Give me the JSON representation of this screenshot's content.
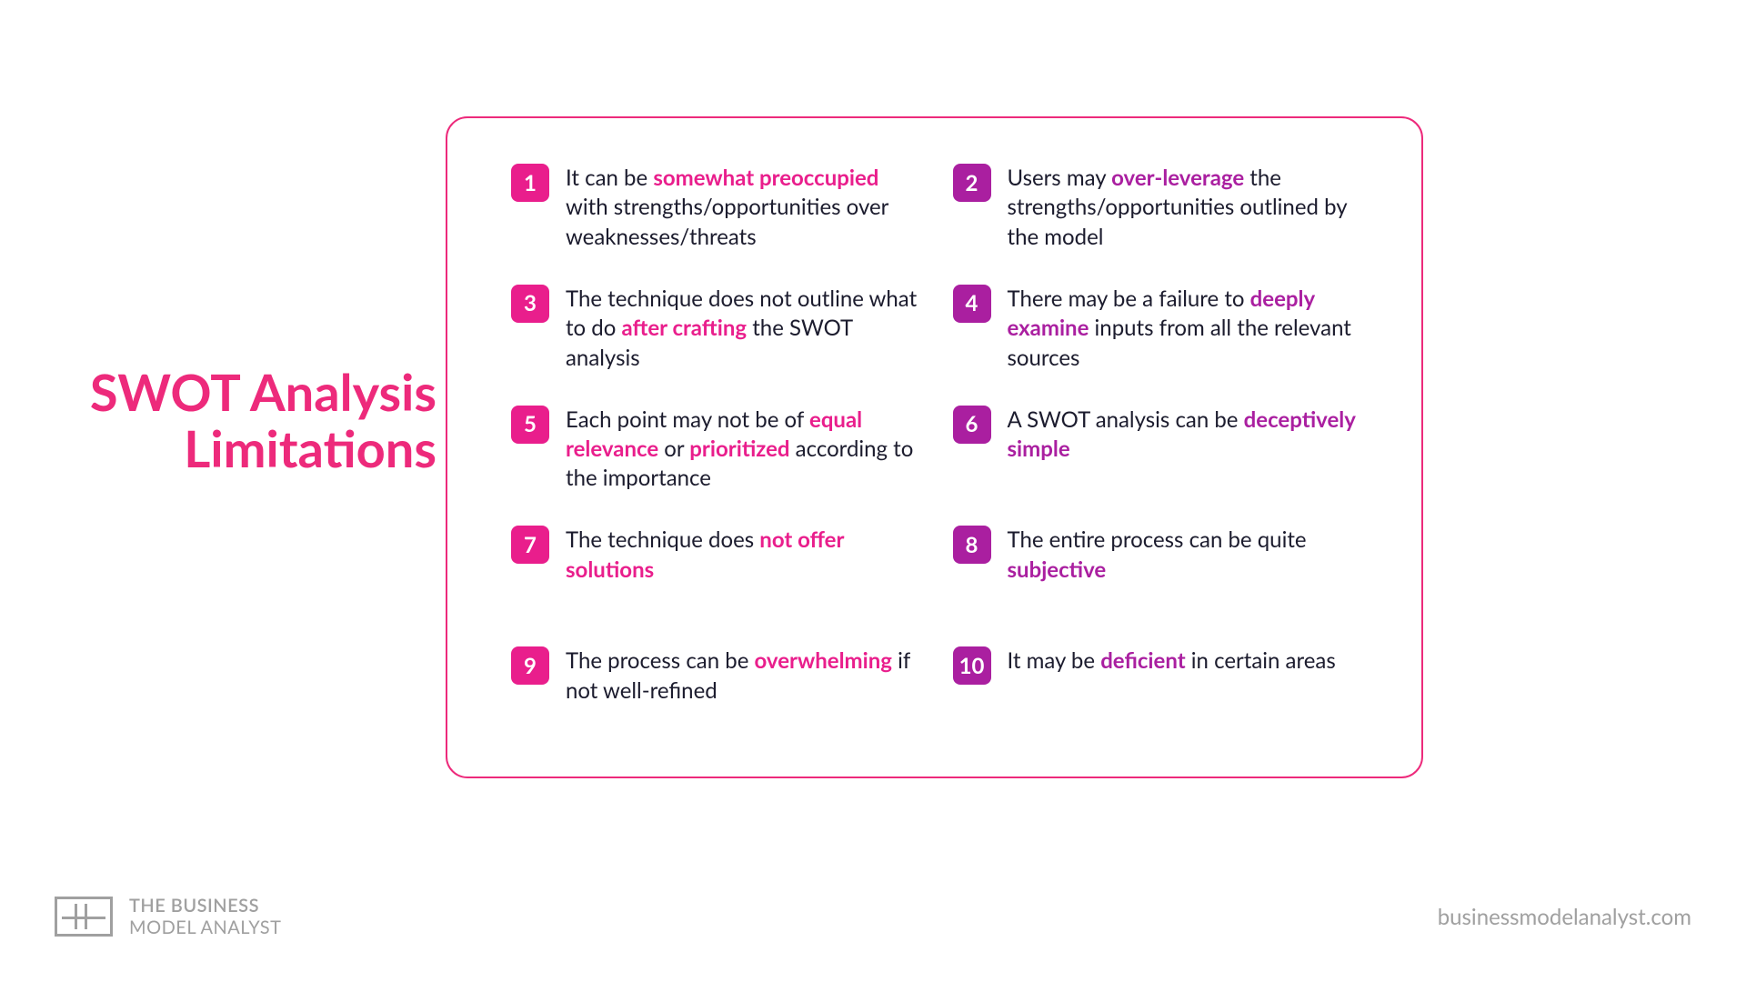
{
  "colors": {
    "title": "#ed2a7b",
    "panel_border": "#ed2a7b",
    "body_text": "#1c1c2e",
    "footer": "#a0a0a0"
  },
  "title_line1": "SWOT Analysis",
  "title_line2": "Limitations",
  "items": [
    {
      "num": "1",
      "box_color": "#e91e8c",
      "hl_color": "#e91e8c",
      "parts": [
        {
          "t": "It can be "
        },
        {
          "t": "somewhat preoccupied",
          "hl": true
        },
        {
          "t": " with strengths/opportunities over weaknesses/threats"
        }
      ]
    },
    {
      "num": "2",
      "box_color": "#aa1fa0",
      "hl_color": "#aa1fa0",
      "parts": [
        {
          "t": "Users may "
        },
        {
          "t": "over-leverage",
          "hl": true
        },
        {
          "t": " the strengths/opportunities outlined by the model"
        }
      ]
    },
    {
      "num": "3",
      "box_color": "#e91e8c",
      "hl_color": "#e91e8c",
      "parts": [
        {
          "t": "The technique does not outline what to do "
        },
        {
          "t": "after crafting",
          "hl": true
        },
        {
          "t": " the SWOT analysis"
        }
      ]
    },
    {
      "num": "4",
      "box_color": "#aa1fa0",
      "hl_color": "#aa1fa0",
      "parts": [
        {
          "t": "There may be a failure to "
        },
        {
          "t": "deeply examine",
          "hl": true
        },
        {
          "t": " inputs from all the relevant sources"
        }
      ]
    },
    {
      "num": "5",
      "box_color": "#e91e8c",
      "hl_color": "#e91e8c",
      "parts": [
        {
          "t": "Each point may not be of "
        },
        {
          "t": "equal relevance",
          "hl": true
        },
        {
          "t": " or "
        },
        {
          "t": "prioritized",
          "hl": true
        },
        {
          "t": " according to the importance"
        }
      ]
    },
    {
      "num": "6",
      "box_color": "#aa1fa0",
      "hl_color": "#aa1fa0",
      "parts": [
        {
          "t": "A SWOT analysis can be "
        },
        {
          "t": "deceptively simple",
          "hl": true
        }
      ]
    },
    {
      "num": "7",
      "box_color": "#e91e8c",
      "hl_color": "#e91e8c",
      "parts": [
        {
          "t": "The technique does "
        },
        {
          "t": "not offer solutions",
          "hl": true
        }
      ]
    },
    {
      "num": "8",
      "box_color": "#aa1fa0",
      "hl_color": "#aa1fa0",
      "parts": [
        {
          "t": "The entire process can be quite "
        },
        {
          "t": "subjective",
          "hl": true
        }
      ]
    },
    {
      "num": "9",
      "box_color": "#e91e8c",
      "hl_color": "#e91e8c",
      "parts": [
        {
          "t": "The process can be "
        },
        {
          "t": "overwhelming",
          "hl": true
        },
        {
          "t": " if not well-refined"
        }
      ]
    },
    {
      "num": "10",
      "box_color": "#aa1fa0",
      "hl_color": "#aa1fa0",
      "parts": [
        {
          "t": "It may be "
        },
        {
          "t": "deficient",
          "hl": true
        },
        {
          "t": " in certain areas"
        }
      ]
    }
  ],
  "footer": {
    "brand_line1": "THE BUSINESS",
    "brand_line2": "MODEL ANALYST",
    "url": "businessmodelanalyst.com"
  }
}
